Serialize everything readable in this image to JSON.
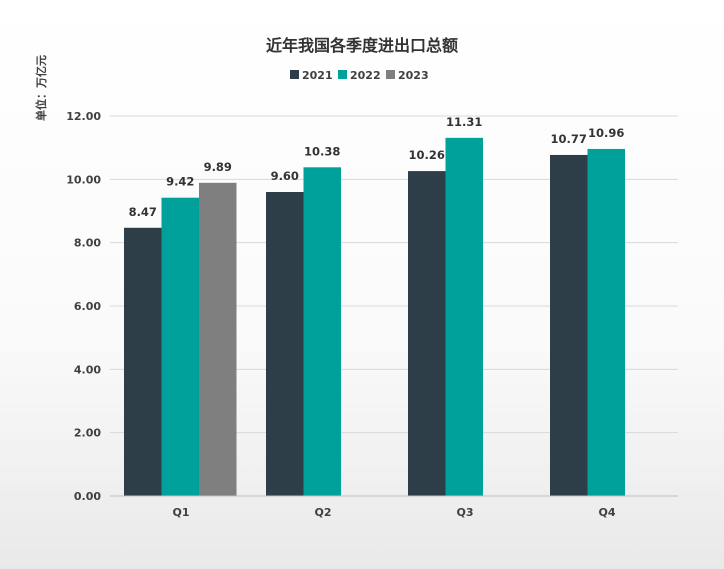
{
  "chart_data": {
    "type": "bar",
    "title": "近年我国各季度进出口总额",
    "ylabel": "单位：万亿元",
    "xlabel": "",
    "categories": [
      "Q1",
      "Q2",
      "Q3",
      "Q4"
    ],
    "ylim": [
      0,
      12
    ],
    "yticks": [
      "0.00",
      "2.00",
      "4.00",
      "6.00",
      "8.00",
      "10.00",
      "12.00"
    ],
    "grid": true,
    "legend": "top-center",
    "series": [
      {
        "name": "2021",
        "color": "#2d3e48",
        "values": [
          8.47,
          9.6,
          10.26,
          10.77
        ],
        "labels": [
          "8.47",
          "9.60",
          "10.26",
          "10.77"
        ]
      },
      {
        "name": "2022",
        "color": "#00a19a",
        "values": [
          9.42,
          10.38,
          11.31,
          10.96
        ],
        "labels": [
          "9.42",
          "10.38",
          "11.31",
          "10.96"
        ]
      },
      {
        "name": "2023",
        "color": "#7f7f7f",
        "values": [
          9.89,
          null,
          null,
          null
        ],
        "labels": [
          "9.89",
          null,
          null,
          null
        ]
      }
    ]
  }
}
